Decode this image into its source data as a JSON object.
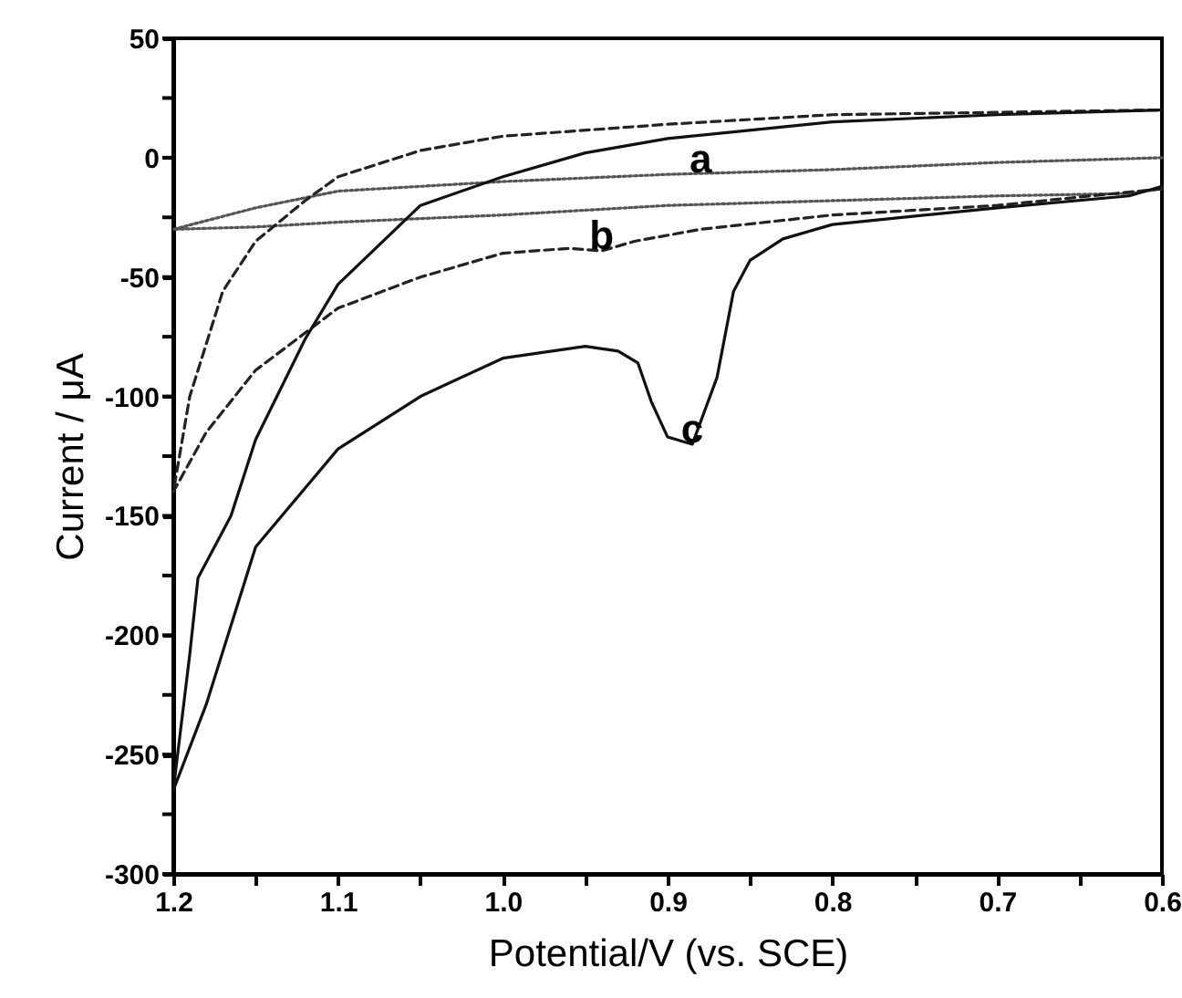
{
  "chart_data": {
    "type": "line",
    "xlabel": "Potential/V (vs. SCE)",
    "ylabel": "Current / μA",
    "xlim": [
      1.2,
      0.6
    ],
    "xticks": [
      1.2,
      {
        "value": 1.15,
        "label": null
      },
      1.1,
      {
        "value": 1.05,
        "label": null
      },
      {
        "value": 1.0,
        "label": "1.0"
      },
      {
        "value": 0.95,
        "label": null
      },
      0.9,
      {
        "value": 0.85,
        "label": null
      },
      0.8,
      {
        "value": 0.75,
        "label": null
      },
      0.7,
      {
        "value": 0.65,
        "label": null
      },
      0.6
    ],
    "ylim": [
      -300,
      50
    ],
    "yticks": [
      50,
      {
        "value": 25,
        "label": null
      },
      0,
      {
        "value": -25,
        "label": null
      },
      -50,
      {
        "value": -75,
        "label": null
      },
      -100,
      {
        "value": -125,
        "label": null
      },
      -150,
      {
        "value": -175,
        "label": null
      },
      -200,
      {
        "value": -225,
        "label": null
      },
      -250,
      {
        "value": -275,
        "label": null
      },
      -300
    ],
    "grid": false,
    "marker": "none",
    "series": [
      {
        "color": "#555555",
        "line_style": "dotted",
        "x": [
          0.6,
          0.7,
          0.8,
          0.9,
          1.0,
          1.1,
          1.15,
          1.2,
          1.15,
          1.1,
          1.0,
          0.9,
          0.8,
          0.7,
          0.62,
          0.6
        ],
        "values": [
          0,
          -2,
          -5,
          -7,
          -10,
          -14,
          -21,
          -30,
          -29,
          -27,
          -24,
          -20,
          -18,
          -16,
          -15,
          -13
        ]
      },
      {
        "color": "#222222",
        "line_style": "dashed",
        "x": [
          0.6,
          0.7,
          0.8,
          0.88,
          0.92,
          0.94,
          0.96,
          1.0,
          1.05,
          1.1,
          1.15,
          1.18,
          1.2,
          1.19,
          1.17,
          1.15,
          1.12,
          1.1,
          1.05,
          1.0,
          0.9,
          0.8,
          0.7,
          0.6
        ],
        "values": [
          -13,
          -20,
          -24,
          -30,
          -35,
          -39,
          -38,
          -40,
          -50,
          -63,
          -89,
          -115,
          -140,
          -100,
          -56,
          -35,
          -18,
          -8,
          3,
          9,
          14,
          18,
          19,
          20
        ]
      },
      {
        "color": "#111111",
        "line_style": "solid",
        "x": [
          0.6,
          0.62,
          0.7,
          0.8,
          0.83,
          0.85,
          0.86,
          0.87,
          0.885,
          0.9,
          0.91,
          0.918,
          0.93,
          0.95,
          1.0,
          1.05,
          1.1,
          1.15,
          1.18,
          1.2,
          1.19,
          1.185,
          1.165,
          1.15,
          1.12,
          1.1,
          1.05,
          1.0,
          0.95,
          0.9,
          0.8,
          0.7,
          0.6
        ],
        "values": [
          -12,
          -16,
          -21,
          -28,
          -34,
          -43,
          -56,
          -92,
          -120,
          -117,
          -102,
          -86,
          -81,
          -79,
          -84,
          -100,
          -122,
          -163,
          -229,
          -265,
          -208,
          -176,
          -150,
          -118,
          -76,
          -53,
          -20,
          -8,
          2,
          8,
          15,
          18,
          20
        ]
      }
    ],
    "annotations": [
      {
        "text": "a",
        "x": 0.88,
        "y": -7
      },
      {
        "text": "b",
        "x": 0.94,
        "y": -39
      },
      {
        "text": "c",
        "x": 0.885,
        "y": -120
      }
    ]
  }
}
